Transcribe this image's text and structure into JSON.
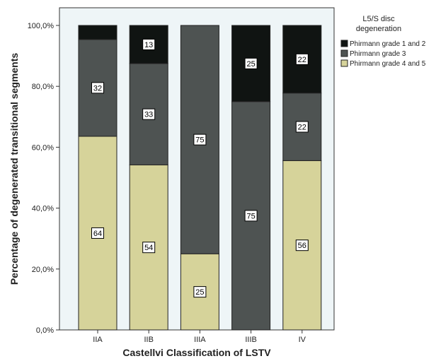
{
  "chart_data": {
    "type": "bar",
    "stacked": true,
    "percent": true,
    "categories": [
      "IIA",
      "IIB",
      "IIIA",
      "IIIB",
      "IV"
    ],
    "series": [
      {
        "name": "Phirmann grade 4 and 5",
        "color": "#d6d39a",
        "values": [
          63.6,
          54.2,
          25,
          0,
          55.6
        ],
        "labels": [
          "64",
          "54",
          "25",
          "",
          "56"
        ]
      },
      {
        "name": "Phirmann grade 3",
        "color": "#4e5352",
        "values": [
          31.8,
          33.3,
          75,
          75,
          22.2
        ],
        "labels": [
          "32",
          "33",
          "75",
          "75",
          "22"
        ]
      },
      {
        "name": "Phirmann grade 1 and 2",
        "color": "#101412",
        "values": [
          4.6,
          12.5,
          0,
          25,
          22.2
        ],
        "labels": [
          "",
          "13",
          "",
          "25",
          "22"
        ]
      }
    ],
    "xlabel": "Castellvi Classification of LSTV",
    "ylabel": "Percentage of degenerated transitional segments",
    "ylim": [
      0,
      100
    ],
    "yticks": [
      0,
      20,
      40,
      60,
      80,
      100
    ],
    "ytick_labels": [
      "0,0%",
      "20,0%",
      "40,0%",
      "60,0%",
      "80,0%",
      "100,0%"
    ],
    "legend": {
      "title": "L5/S disc degeneration",
      "title_lines": [
        "L5/S disc",
        "degeneration"
      ],
      "placement": "top-right",
      "order": [
        "Phirmann grade 1 and 2",
        "Phirmann grade 3",
        "Phirmann grade 4 and 5"
      ]
    },
    "plot_background": "#eef5f7",
    "grid": false
  }
}
